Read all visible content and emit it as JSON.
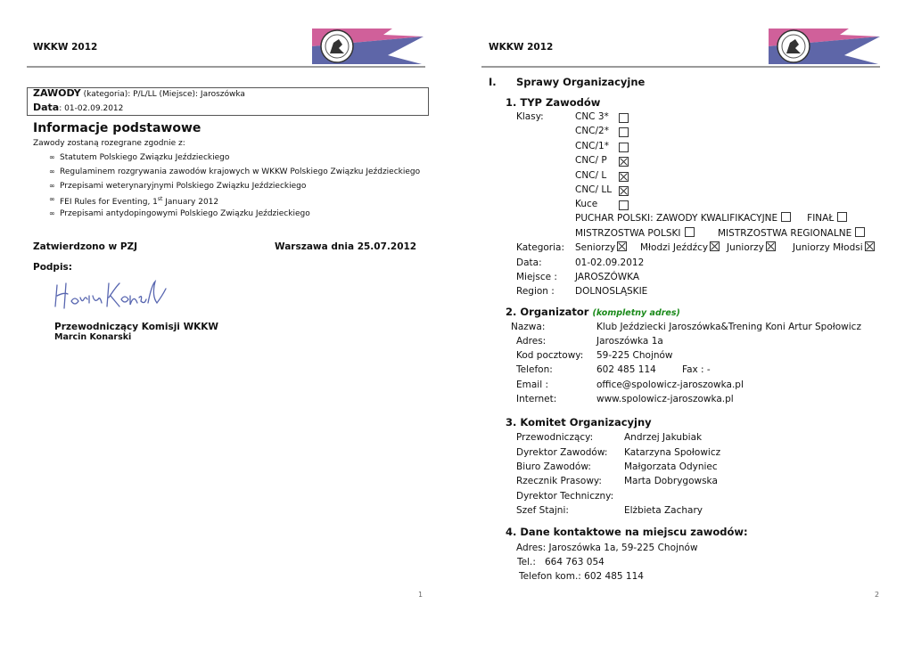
{
  "colors": {
    "pennant_top": "#d0609a",
    "pennant_bottom": "#5e66a8",
    "rule": "#9a9a9a",
    "accent_green": "#1a8a1a",
    "signature": "#5866b0"
  },
  "page1": {
    "header": "WKKW 2012",
    "box": {
      "zawody_label": "ZAWODY",
      "zawody_rest": " (kategoria):  P/L/LL  (Miejsce): Jaroszówka",
      "data_label": "Data",
      "data_rest": ": 01-02.09.2012"
    },
    "heading": "Informacje podstawowe",
    "intro": "Zawody zostaną rozegrane zgodnie z:",
    "bullet_glyph": "∞",
    "bullets": [
      "Statutem Polskiego Związku Jeździeckiego",
      "Regulaminem rozgrywania zawodów krajowych w WKKW Polskiego Związku Jeździeckiego",
      "Przepisami weterynaryjnymi Polskiego Związku Jeździeckiego",
      "FEI Rules for Eventing,  1",
      "Przepisami antydopingowymi Polskiego Związku Jeździeckiego"
    ],
    "fei_sup": "st",
    "fei_rest": " January 2012",
    "approved": "Zatwierdzono w PZJ",
    "place_date": "Warszawa dnia 25.07.2012",
    "signature_label": "Podpis:",
    "signer_title": "Przewodniczący Komisji WKKW",
    "signer_name": "Marcin Konarski",
    "page_number": "1"
  },
  "page2": {
    "header": "WKKW 2012",
    "section_num": "I.",
    "section_title": "Sprawy Organizacyjne",
    "s1": {
      "title": "1. TYP Zawodów",
      "klasy_label": "Klasy:",
      "classes": [
        {
          "label": "CNC 3*",
          "checked": false
        },
        {
          "label": "CNC/2*",
          "checked": false
        },
        {
          "label": "CNC/1*",
          "checked": false
        },
        {
          "label": "CNC/ P",
          "checked": true
        },
        {
          "label": "CNC/ L",
          "checked": true
        },
        {
          "label": "CNC/ LL",
          "checked": true
        },
        {
          "label": "Kuce",
          "checked": false
        }
      ],
      "puchar": "PUCHAR POLSKI: ZAWODY KWALIFIKACYJNE",
      "finał": "FINAŁ",
      "mp": "MISTRZOSTWA POLSKI",
      "mr": "MISTRZOSTWA REGIONALNE",
      "kategoria_label": "Kategoria:",
      "categories": [
        {
          "label": "Seniorzy",
          "checked": true
        },
        {
          "label": "Młodzi Jeźdźcy",
          "checked": true
        },
        {
          "label": "Juniorzy",
          "checked": true
        },
        {
          "label": "Juniorzy Młodsi",
          "checked": true
        }
      ],
      "data_label": "Data:",
      "data": "01-02.09.2012",
      "miejsce_label": "Miejsce :",
      "miejsce": "JAROSZÓWKA",
      "region_label": "Region :",
      "region": "DOLNOSLĄSKIE"
    },
    "s2": {
      "title": "2. Organizator",
      "note": "(kompletny adres)",
      "rows": [
        {
          "label": "Nazwa:",
          "value": "Klub Jeździecki Jaroszówka&Trening Koni Artur Społowicz"
        },
        {
          "label": "Adres:",
          "value": "Jaroszówka 1a"
        },
        {
          "label": "Kod pocztowy:",
          "value": "59-225 Chojnów"
        },
        {
          "label": "Telefon:",
          "value": "602 485 114"
        },
        {
          "label": "Email :",
          "value": "office@spolowicz-jaroszowka.pl"
        },
        {
          "label": "Internet:",
          "value": "www.spolowicz-jaroszowka.pl"
        }
      ],
      "fax": "Fax : -"
    },
    "s3": {
      "title": "3. Komitet Organizacyjny",
      "rows": [
        {
          "label": "Przewodniczący:",
          "value": "Andrzej Jakubiak"
        },
        {
          "label": "Dyrektor Zawodów:",
          "value": "Katarzyna Społowicz"
        },
        {
          "label": "Biuro Zawodów:",
          "value": "Małgorzata Odyniec"
        },
        {
          "label": "Rzecznik Prasowy:",
          "value": "Marta Dobrygowska"
        },
        {
          "label": "Dyrektor Techniczny:",
          "value": ""
        },
        {
          "label": "Szef Stajni:",
          "value": "Elżbieta Zachary"
        }
      ]
    },
    "s4": {
      "title": "4. Dane kontaktowe na miejscu zawodów:",
      "adres": "Adres: Jaroszówka 1a, 59-225 Chojnów",
      "tel_label": "Tel.:",
      "tel": "664 763 054",
      "kom": "Telefon kom.: 602 485 114"
    },
    "page_number": "2"
  }
}
